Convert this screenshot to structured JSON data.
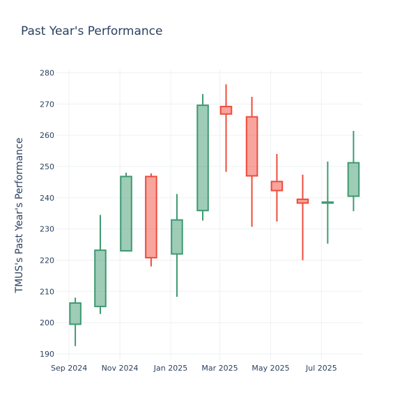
{
  "chart_data": {
    "type": "candlestick",
    "title": "Past Year's Performance",
    "xlabel": "",
    "ylabel": "TMUS's Past Year's Performance",
    "ylim": [
      188,
      281
    ],
    "yticks": [
      190,
      200,
      210,
      220,
      230,
      240,
      250,
      260,
      270,
      280
    ],
    "grid": true,
    "xlim": [
      "2024-08-16",
      "2025-08-19"
    ],
    "xticks": [
      {
        "date": "2024-09-01",
        "label": "Sep 2024"
      },
      {
        "date": "2024-11-01",
        "label": "Nov 2024"
      },
      {
        "date": "2025-01-01",
        "label": "Jan 2025"
      },
      {
        "date": "2025-03-01",
        "label": "Mar 2025"
      },
      {
        "date": "2025-05-01",
        "label": "May 2025"
      },
      {
        "date": "2025-07-01",
        "label": "Jul 2025"
      }
    ],
    "increasing_color": "#3d9970",
    "decreasing_color": "#ef4b3c",
    "candles": [
      {
        "date": "2024-09-01",
        "open": 199.5,
        "high": 208.0,
        "low": 192.5,
        "close": 206.3
      },
      {
        "date": "2024-10-01",
        "open": 205.2,
        "high": 234.5,
        "low": 202.8,
        "close": 223.2
      },
      {
        "date": "2024-11-01",
        "open": 223.0,
        "high": 248.0,
        "low": 222.8,
        "close": 246.8
      },
      {
        "date": "2024-12-01",
        "open": 246.8,
        "high": 247.8,
        "low": 218.0,
        "close": 220.8
      },
      {
        "date": "2025-01-01",
        "open": 222.0,
        "high": 241.2,
        "low": 208.3,
        "close": 232.9
      },
      {
        "date": "2025-02-01",
        "open": 235.9,
        "high": 273.2,
        "low": 232.7,
        "close": 269.6
      },
      {
        "date": "2025-03-01",
        "open": 269.2,
        "high": 276.3,
        "low": 248.3,
        "close": 266.8
      },
      {
        "date": "2025-04-01",
        "open": 265.9,
        "high": 272.3,
        "low": 230.7,
        "close": 247.0
      },
      {
        "date": "2025-05-01",
        "open": 245.2,
        "high": 254.0,
        "low": 232.4,
        "close": 242.3
      },
      {
        "date": "2025-06-01",
        "open": 239.5,
        "high": 247.4,
        "low": 220.0,
        "close": 238.3
      },
      {
        "date": "2025-07-01",
        "open": 238.3,
        "high": 251.6,
        "low": 225.3,
        "close": 238.6
      },
      {
        "date": "2025-08-01",
        "open": 240.5,
        "high": 261.4,
        "low": 235.7,
        "close": 251.2
      }
    ]
  }
}
